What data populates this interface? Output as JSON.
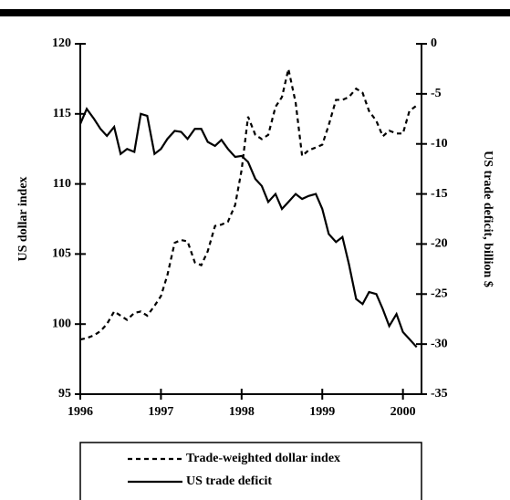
{
  "chart_data": {
    "type": "line",
    "x": [
      1996.0,
      1996.08,
      1996.17,
      1996.25,
      1996.33,
      1996.42,
      1996.5,
      1996.58,
      1996.67,
      1996.75,
      1996.83,
      1996.92,
      1997.0,
      1997.08,
      1997.17,
      1997.25,
      1997.33,
      1997.42,
      1997.5,
      1997.58,
      1997.67,
      1997.75,
      1997.83,
      1997.92,
      1998.0,
      1998.08,
      1998.17,
      1998.25,
      1998.33,
      1998.42,
      1998.5,
      1998.58,
      1998.67,
      1998.75,
      1998.83,
      1998.92,
      1999.0,
      1999.08,
      1999.17,
      1999.25,
      1999.33,
      1999.42,
      1999.5,
      1999.58,
      1999.67,
      1999.75,
      1999.83,
      1999.92,
      2000.0,
      2000.08,
      2000.17
    ],
    "series": [
      {
        "name": "Trade-weighted dollar index",
        "color": "#000000",
        "style": "dashed",
        "axis": "y",
        "values": [
          98.9,
          99.0,
          99.2,
          99.5,
          100.0,
          100.9,
          100.6,
          100.3,
          100.8,
          100.9,
          100.6,
          101.3,
          102.0,
          103.5,
          105.8,
          106.0,
          105.9,
          104.4,
          104.2,
          105.2,
          107.0,
          107.1,
          107.3,
          108.5,
          111.0,
          114.8,
          113.5,
          113.2,
          113.5,
          115.5,
          116.2,
          118.2,
          115.8,
          112.0,
          112.4,
          112.6,
          112.8,
          114.2,
          116.0,
          116.0,
          116.2,
          116.8,
          116.5,
          115.2,
          114.5,
          113.4,
          113.8,
          113.6,
          113.6,
          115.2,
          115.6
        ]
      },
      {
        "name": "US trade deficit",
        "color": "#000000",
        "style": "solid",
        "axis": "y2",
        "values": [
          -8.0,
          -6.5,
          -7.5,
          -8.5,
          -9.2,
          -8.3,
          -11.0,
          -10.5,
          -10.8,
          -7.0,
          -7.2,
          -11.0,
          -10.5,
          -9.5,
          -8.7,
          -8.8,
          -9.5,
          -8.5,
          -8.5,
          -9.8,
          -10.2,
          -9.6,
          -10.5,
          -11.3,
          -11.2,
          -11.8,
          -13.5,
          -14.2,
          -15.8,
          -15.0,
          -16.5,
          -15.8,
          -15.0,
          -15.5,
          -15.2,
          -15.0,
          -16.5,
          -19.0,
          -19.8,
          -19.3,
          -22.0,
          -25.5,
          -26.0,
          -24.8,
          -25.0,
          -26.5,
          -28.2,
          -27.0,
          -28.8,
          -29.5,
          -30.3
        ]
      }
    ],
    "xlim": [
      1996,
      2000.23
    ],
    "xticks": [
      1996,
      1997,
      1998,
      1999,
      2000
    ],
    "ylim": [
      95,
      120
    ],
    "yticks": [
      95,
      100,
      105,
      110,
      115,
      120
    ],
    "y2lim": [
      -35,
      0
    ],
    "y2ticks": [
      -35,
      -30,
      -25,
      -20,
      -15,
      -10,
      -5,
      0
    ],
    "ylabel": "US dollar index",
    "y2label": "US trade deficit, billion $",
    "legend": "bottom"
  }
}
